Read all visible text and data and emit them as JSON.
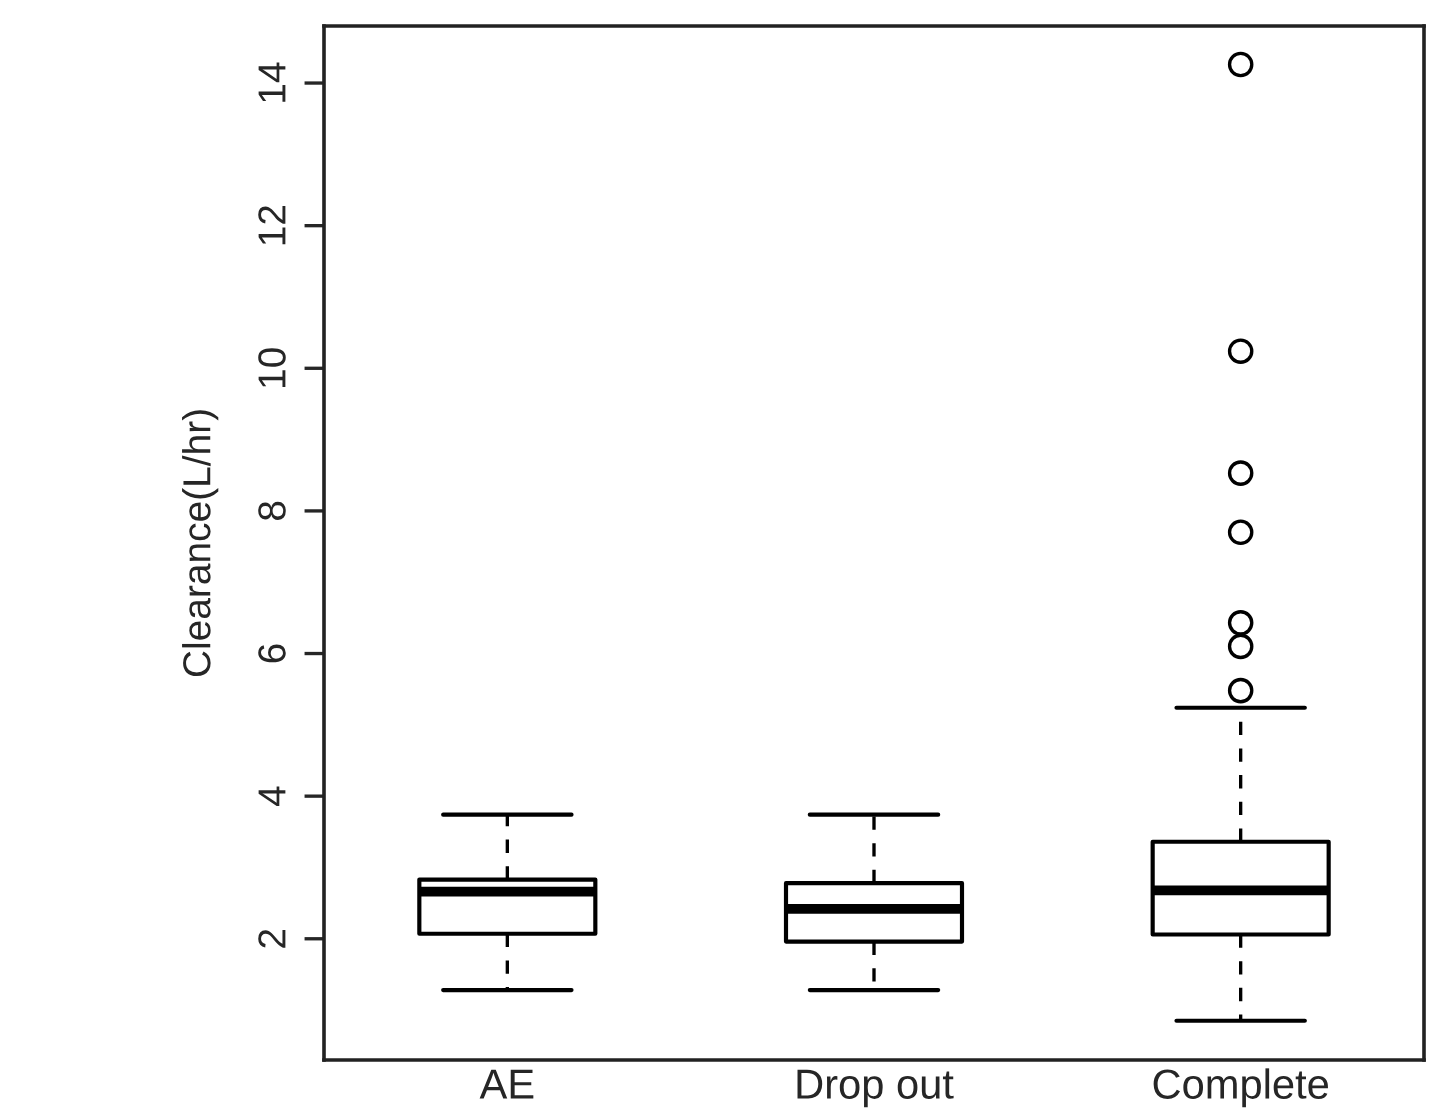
{
  "chart_data": {
    "type": "box",
    "ylabel": "Clearance(L/hr)",
    "categories": [
      "AE",
      "Drop out",
      "Complete"
    ],
    "boxes": [
      {
        "low": 1.28,
        "q1": 2.07,
        "median": 2.66,
        "q3": 2.83,
        "high": 3.74
      },
      {
        "low": 1.28,
        "q1": 1.96,
        "median": 2.42,
        "q3": 2.78,
        "high": 3.74
      },
      {
        "low": 0.85,
        "q1": 2.06,
        "median": 2.68,
        "q3": 3.36,
        "high": 5.24,
        "outliers": [
          14.26,
          10.24,
          8.53,
          7.7,
          6.43,
          6.1,
          5.48
        ]
      }
    ],
    "ylim": [
      0.3,
      14.8
    ],
    "yticks": [
      2,
      4,
      6,
      8,
      10,
      12,
      14
    ],
    "grid": false,
    "marker": "circle",
    "line_style": "dashed"
  }
}
